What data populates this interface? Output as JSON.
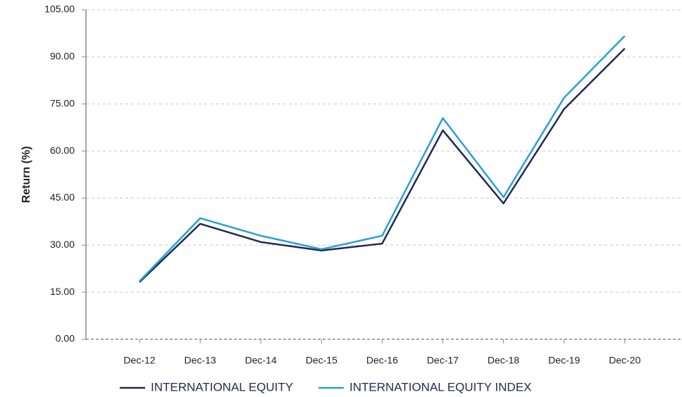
{
  "chart_data": {
    "type": "line",
    "y_label": "Return (%)",
    "categories": [
      "Dec-12",
      "Dec-13",
      "Dec-14",
      "Dec-15",
      "Dec-16",
      "Dec-17",
      "Dec-18",
      "Dec-19",
      "Dec-20"
    ],
    "series": [
      {
        "name": "INTERNATIONAL EQUITY",
        "color": "#1f2a4f",
        "values": [
          18.2,
          36.8,
          31.0,
          28.3,
          30.5,
          66.6,
          43.3,
          73.4,
          92.7
        ]
      },
      {
        "name": "INTERNATIONAL EQUITY INDEX",
        "color": "#2a9fd6",
        "values": [
          18.5,
          38.6,
          33.0,
          28.7,
          33.0,
          70.5,
          45.3,
          77.0,
          96.7
        ]
      }
    ],
    "ylim": [
      0,
      105
    ],
    "yticks": [
      {
        "value": 0,
        "label": "0.00"
      },
      {
        "value": 15,
        "label": "15.00"
      },
      {
        "value": 30,
        "label": "30.00"
      },
      {
        "value": 45,
        "label": "45.00"
      },
      {
        "value": 60,
        "label": "60.00"
      },
      {
        "value": 75,
        "label": "75.00"
      },
      {
        "value": 90,
        "label": "90.00"
      },
      {
        "value": 105,
        "label": "105.00"
      }
    ],
    "grid": true,
    "legend": "bottom"
  }
}
